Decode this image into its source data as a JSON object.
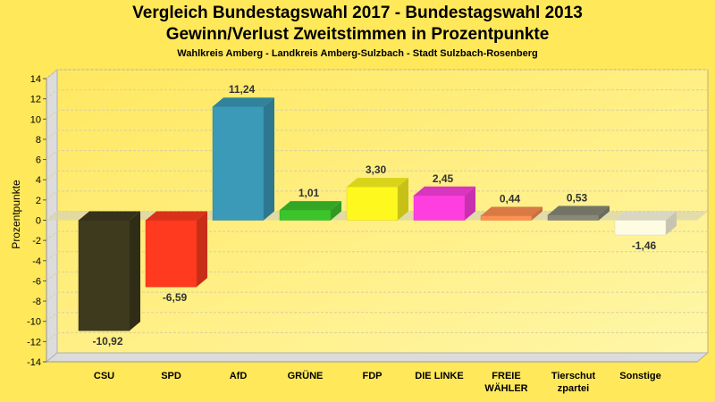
{
  "chart_data": {
    "type": "bar",
    "title": "Vergleich Bundestagswahl 2017 - Bundestagswahl 2013",
    "subtitle": "Gewinn/Verlust Zweitstimmen in Prozentpunkte",
    "subsubtitle": "Wahlkreis Amberg - Landkreis Amberg-Sulzbach - Stadt Sulzbach-Rosenberg",
    "xlabel": "",
    "ylabel": "Prozentpunkte",
    "ylim": [
      -14,
      14
    ],
    "yticks": [
      14,
      12,
      10,
      8,
      6,
      4,
      2,
      0,
      -2,
      -4,
      -6,
      -8,
      -10,
      -12,
      -14
    ],
    "grid": true,
    "categories": [
      [
        "CSU"
      ],
      [
        "SPD"
      ],
      [
        "AfD"
      ],
      [
        "GRÜNE"
      ],
      [
        "FDP"
      ],
      [
        "DIE LINKE"
      ],
      [
        "FREIE",
        "WÄHLER"
      ],
      [
        "Tierschut",
        "zpartei"
      ],
      [
        "Sonstige"
      ]
    ],
    "values": [
      -10.92,
      -6.59,
      11.24,
      1.01,
      3.3,
      2.45,
      0.44,
      0.53,
      -1.46
    ],
    "value_labels": [
      "-10,92",
      "-6,59",
      "11,24",
      "1,01",
      "3,30",
      "2,45",
      "0,44",
      "0,53",
      "-1,46"
    ],
    "colors": [
      "#3E3A1E",
      "#FF3A1E",
      "#3A9AB8",
      "#3CC42C",
      "#FFF81E",
      "#FF3EE0",
      "#FF9050",
      "#888878",
      "#FFFCE4"
    ]
  }
}
